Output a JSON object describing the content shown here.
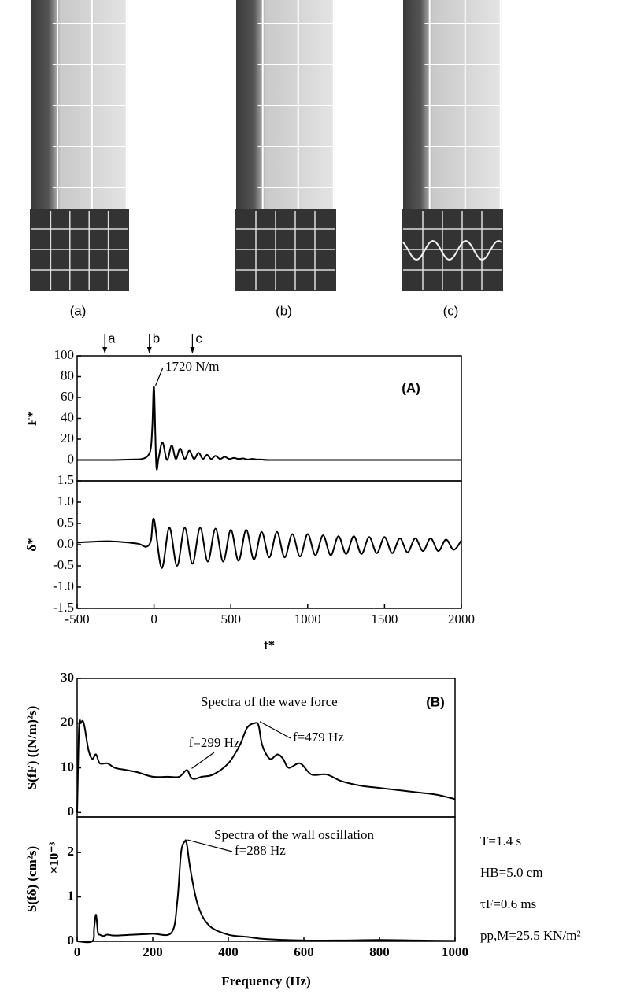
{
  "figure": {
    "photo_labels": [
      "(a)",
      "(b)",
      "(c)"
    ]
  },
  "chart_data": [
    {
      "type": "line",
      "panel_label": "(A)",
      "ylabel": "F*",
      "color": "#000000",
      "xlim": [
        -500,
        2000
      ],
      "ylim": [
        -20,
        100
      ],
      "yticks": [
        0,
        20,
        40,
        60,
        80,
        100
      ],
      "x": [
        -500,
        -300,
        -150,
        -80,
        -40,
        -20,
        -10,
        0,
        15,
        30,
        55,
        85,
        115,
        142,
        170,
        200,
        230,
        260,
        290,
        318,
        345,
        372,
        400,
        430,
        460,
        490,
        520,
        550,
        580,
        610,
        640,
        670,
        700,
        750,
        1000,
        1500,
        2000
      ],
      "values": [
        0,
        0,
        0.5,
        1,
        4,
        12,
        35,
        70,
        -5,
        2,
        17,
        0,
        14,
        1,
        11,
        1,
        9,
        1,
        7,
        1,
        5,
        1,
        4,
        1,
        3,
        1,
        2,
        1,
        1.5,
        0.5,
        1,
        0.5,
        0.5,
        0,
        0,
        0,
        0
      ],
      "annotations": [
        "1720 N/m"
      ],
      "markers": [
        {
          "label": "a",
          "x": -320
        },
        {
          "label": "b",
          "x": -30
        },
        {
          "label": "c",
          "x": 250
        }
      ]
    },
    {
      "type": "line",
      "ylabel": "δ*",
      "xlabel": "t*",
      "color": "#000000",
      "xlim": [
        -500,
        2000
      ],
      "xticks": [
        -500,
        0,
        500,
        1000,
        1500,
        2000
      ],
      "ylim": [
        -1.5,
        1.5
      ],
      "yticks": [
        -1.5,
        {
          "value": -1,
          "label": "-1.0"
        },
        -0.5,
        {
          "value": 0,
          "label": "0.0"
        },
        0.5,
        {
          "value": 1,
          "label": "1.0"
        },
        1.5
      ],
      "x": [
        -500,
        -400,
        -300,
        -200,
        -100,
        -50,
        -20,
        0,
        50,
        100,
        150,
        200,
        250,
        300,
        350,
        400,
        450,
        500,
        550,
        600,
        650,
        700,
        750,
        800,
        850,
        900,
        950,
        1000,
        1050,
        1100,
        1150,
        1200,
        1250,
        1300,
        1350,
        1400,
        1450,
        1500,
        1550,
        1600,
        1650,
        1700,
        1750,
        1800,
        1850,
        1900,
        1950,
        2000
      ],
      "values": [
        0.05,
        0.07,
        0.08,
        0.06,
        0.02,
        -0.05,
        0.1,
        0.6,
        -0.55,
        0.4,
        -0.5,
        0.4,
        -0.45,
        0.4,
        -0.4,
        0.38,
        -0.4,
        0.35,
        -0.38,
        0.35,
        -0.35,
        0.3,
        -0.3,
        0.3,
        -0.3,
        0.25,
        -0.28,
        0.25,
        -0.25,
        0.22,
        -0.25,
        0.2,
        -0.22,
        0.2,
        -0.22,
        0.18,
        -0.2,
        0.18,
        -0.2,
        0.15,
        -0.18,
        0.15,
        -0.15,
        0.15,
        -0.15,
        0.12,
        -0.12,
        0.1
      ]
    },
    {
      "type": "line",
      "title": "Spectra of the wave force",
      "panel_label": "(B)",
      "ylabel": "S(fF) ((N/m)²s)",
      "color": "#000000",
      "xlim": [
        0,
        1000
      ],
      "ylim": [
        -1,
        30
      ],
      "yticks": [
        0,
        10,
        20,
        30
      ],
      "x": [
        0,
        5,
        10,
        15,
        20,
        30,
        40,
        50,
        60,
        80,
        100,
        130,
        160,
        200,
        240,
        270,
        290,
        300,
        310,
        330,
        360,
        400,
        430,
        450,
        470,
        480,
        490,
        510,
        530,
        545,
        560,
        590,
        620,
        660,
        700,
        750,
        800,
        850,
        900,
        950,
        1000
      ],
      "values": [
        0,
        19,
        20,
        20.5,
        19,
        14,
        12,
        13,
        11,
        11,
        10,
        9.5,
        9,
        8,
        8,
        8,
        9.5,
        8,
        7.5,
        8,
        8.5,
        11,
        15,
        19,
        20,
        19.5,
        15,
        12,
        13,
        12,
        10,
        11,
        8.5,
        8.5,
        7,
        6,
        5.5,
        5,
        4.5,
        4,
        3
      ],
      "annotations": [
        "f=299 Hz",
        "f=479 Hz"
      ]
    },
    {
      "type": "line",
      "title": "Spectra of the wall oscillation",
      "ylabel": "S(fδ) (cm²s)",
      "y_multiplier": "×10⁻³",
      "xlabel": "Frequency (Hz)",
      "color": "#000000",
      "xlim": [
        0,
        1000
      ],
      "xticks": [
        0,
        200,
        400,
        600,
        800,
        1000
      ],
      "ylim": [
        0,
        2.8
      ],
      "yticks": [
        0,
        1,
        2
      ],
      "x": [
        0,
        40,
        45,
        50,
        55,
        60,
        70,
        80,
        100,
        150,
        200,
        250,
        265,
        275,
        285,
        290,
        300,
        320,
        350,
        400,
        450,
        500,
        600,
        700,
        800,
        900,
        1000
      ],
      "values": [
        0,
        0,
        0.3,
        0.6,
        0.2,
        0.15,
        0.12,
        0.15,
        0.13,
        0.15,
        0.17,
        0.2,
        0.9,
        2.0,
        2.25,
        2.2,
        1.6,
        0.8,
        0.35,
        0.15,
        0.1,
        0.05,
        0.02,
        0.02,
        0.03,
        0.02,
        0.01
      ],
      "annotations": [
        "f=288 Hz"
      ],
      "notes": [
        "T=1.4 s",
        "HB=5.0 cm",
        "τF=0.6 ms",
        "pp,M=25.5 KN/m²"
      ]
    }
  ]
}
